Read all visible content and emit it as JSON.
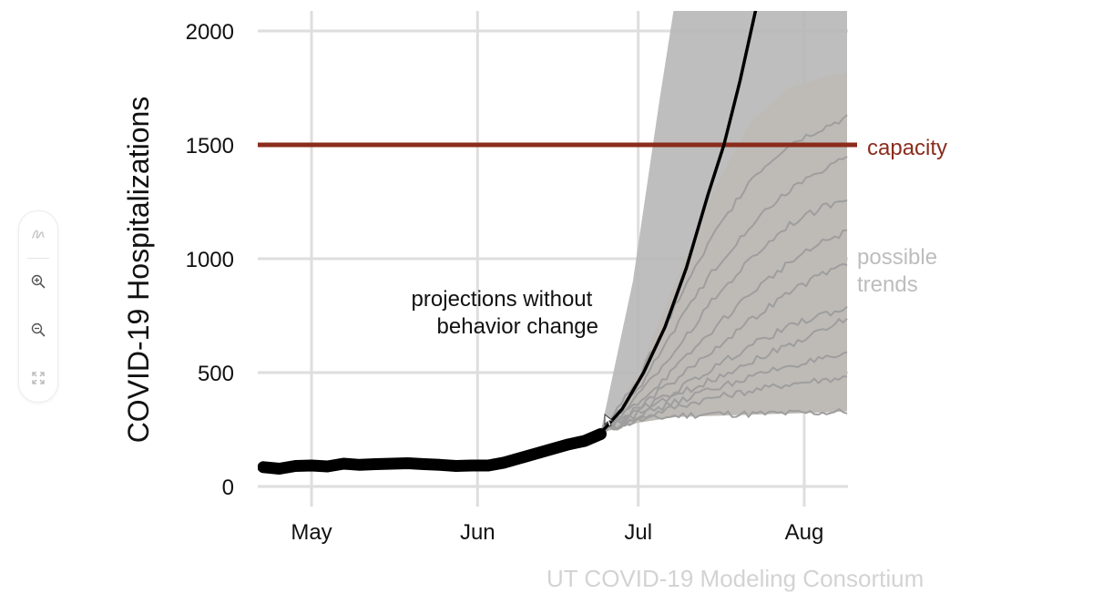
{
  "chart_data": {
    "type": "line",
    "ylabel": "COVID-19 Hospitalizations",
    "ylim": [
      0,
      2000
    ],
    "yticks": [
      "0",
      "500",
      "1000",
      "1500",
      "2000"
    ],
    "xticks": [
      "May",
      "Jun",
      "Jul",
      "Aug"
    ],
    "xticks_dates": [
      "2020-05-01",
      "2020-06-01",
      "2020-07-01",
      "2020-08-01"
    ],
    "xlim": [
      "2020-04-22",
      "2020-08-09"
    ],
    "grid": true,
    "capacity": {
      "label": "capacity",
      "value": 1500,
      "color": "#8b2c1c"
    },
    "observed": {
      "color": "#000000",
      "x": [
        "2020-04-22",
        "2020-04-25",
        "2020-04-28",
        "2020-05-01",
        "2020-05-04",
        "2020-05-07",
        "2020-05-10",
        "2020-05-13",
        "2020-05-16",
        "2020-05-19",
        "2020-05-22",
        "2020-05-25",
        "2020-05-28",
        "2020-05-31",
        "2020-06-03",
        "2020-06-06",
        "2020-06-09",
        "2020-06-12",
        "2020-06-15",
        "2020-06-18",
        "2020-06-21",
        "2020-06-24"
      ],
      "y": [
        85,
        78,
        90,
        92,
        88,
        100,
        95,
        98,
        100,
        102,
        98,
        95,
        90,
        92,
        92,
        105,
        125,
        145,
        165,
        185,
        200,
        230
      ]
    },
    "projection": {
      "label": "projections without behavior change",
      "color": "#000000",
      "x": [
        "2020-06-24",
        "2020-06-28",
        "2020-07-02",
        "2020-07-06",
        "2020-07-10",
        "2020-07-14",
        "2020-07-17",
        "2020-07-20",
        "2020-07-23"
      ],
      "y": [
        235,
        340,
        500,
        700,
        960,
        1280,
        1500,
        1780,
        2100
      ]
    },
    "possible_trends": {
      "label": "possible trends",
      "ensemble_color": "#b7b7b7",
      "band_color": "#f8ddb6",
      "band_upper": {
        "x": [
          "2020-06-24",
          "2020-07-01",
          "2020-07-08",
          "2020-07-15",
          "2020-07-22",
          "2020-07-29",
          "2020-08-05",
          "2020-08-09"
        ],
        "y": [
          240,
          500,
          900,
          1300,
          1600,
          1750,
          1800,
          1820
        ]
      },
      "lower_envelope": {
        "x": [
          "2020-06-24",
          "2020-07-01",
          "2020-07-08",
          "2020-07-15",
          "2020-07-22",
          "2020-07-29",
          "2020-08-05",
          "2020-08-09"
        ],
        "y": [
          235,
          280,
          305,
          310,
          315,
          320,
          325,
          330
        ]
      },
      "trends": [
        {
          "x": [
            "2020-06-24",
            "2020-07-01",
            "2020-07-08",
            "2020-07-15",
            "2020-07-22",
            "2020-07-29",
            "2020-08-05",
            "2020-08-09"
          ],
          "y": [
            240,
            290,
            310,
            320,
            318,
            322,
            325,
            330
          ]
        },
        {
          "x": [
            "2020-06-24",
            "2020-07-01",
            "2020-07-08",
            "2020-07-15",
            "2020-07-22",
            "2020-07-29",
            "2020-08-05",
            "2020-08-09"
          ],
          "y": [
            240,
            300,
            350,
            390,
            420,
            450,
            470,
            480
          ]
        },
        {
          "x": [
            "2020-06-24",
            "2020-07-01",
            "2020-07-08",
            "2020-07-15",
            "2020-07-22",
            "2020-07-29",
            "2020-08-05",
            "2020-08-09"
          ],
          "y": [
            240,
            310,
            370,
            430,
            480,
            530,
            560,
            575
          ]
        },
        {
          "x": [
            "2020-06-24",
            "2020-07-01",
            "2020-07-08",
            "2020-07-15",
            "2020-07-22",
            "2020-07-29",
            "2020-08-05",
            "2020-08-09"
          ],
          "y": [
            240,
            320,
            400,
            470,
            550,
            620,
            690,
            740
          ]
        },
        {
          "x": [
            "2020-06-24",
            "2020-07-01",
            "2020-07-08",
            "2020-07-15",
            "2020-07-22",
            "2020-07-29",
            "2020-08-05",
            "2020-08-09"
          ],
          "y": [
            240,
            330,
            420,
            520,
            620,
            700,
            760,
            780
          ]
        },
        {
          "x": [
            "2020-06-24",
            "2020-07-01",
            "2020-07-08",
            "2020-07-15",
            "2020-07-22",
            "2020-07-29",
            "2020-08-05",
            "2020-08-09"
          ],
          "y": [
            240,
            350,
            470,
            600,
            730,
            850,
            940,
            980
          ]
        },
        {
          "x": [
            "2020-06-24",
            "2020-07-01",
            "2020-07-08",
            "2020-07-15",
            "2020-07-22",
            "2020-07-29",
            "2020-08-05",
            "2020-08-09"
          ],
          "y": [
            240,
            370,
            520,
            690,
            850,
            980,
            1080,
            1120
          ]
        },
        {
          "x": [
            "2020-06-24",
            "2020-07-01",
            "2020-07-08",
            "2020-07-15",
            "2020-07-22",
            "2020-07-29",
            "2020-08-05",
            "2020-08-09"
          ],
          "y": [
            240,
            400,
            600,
            820,
            1000,
            1150,
            1230,
            1270
          ]
        },
        {
          "x": [
            "2020-06-24",
            "2020-07-01",
            "2020-07-08",
            "2020-07-15",
            "2020-07-22",
            "2020-07-29",
            "2020-08-05",
            "2020-08-09"
          ],
          "y": [
            240,
            430,
            700,
            950,
            1150,
            1300,
            1400,
            1450
          ]
        },
        {
          "x": [
            "2020-06-24",
            "2020-07-01",
            "2020-07-08",
            "2020-07-15",
            "2020-07-22",
            "2020-07-29",
            "2020-08-05",
            "2020-08-09"
          ],
          "y": [
            240,
            470,
            800,
            1100,
            1350,
            1500,
            1580,
            1620
          ]
        }
      ]
    }
  },
  "credit": "UT COVID-19 Modeling Consortium",
  "toolbar": {
    "icons": [
      "scribble-icon",
      "zoom-in-icon",
      "zoom-out-icon",
      "fit-screen-icon"
    ]
  }
}
